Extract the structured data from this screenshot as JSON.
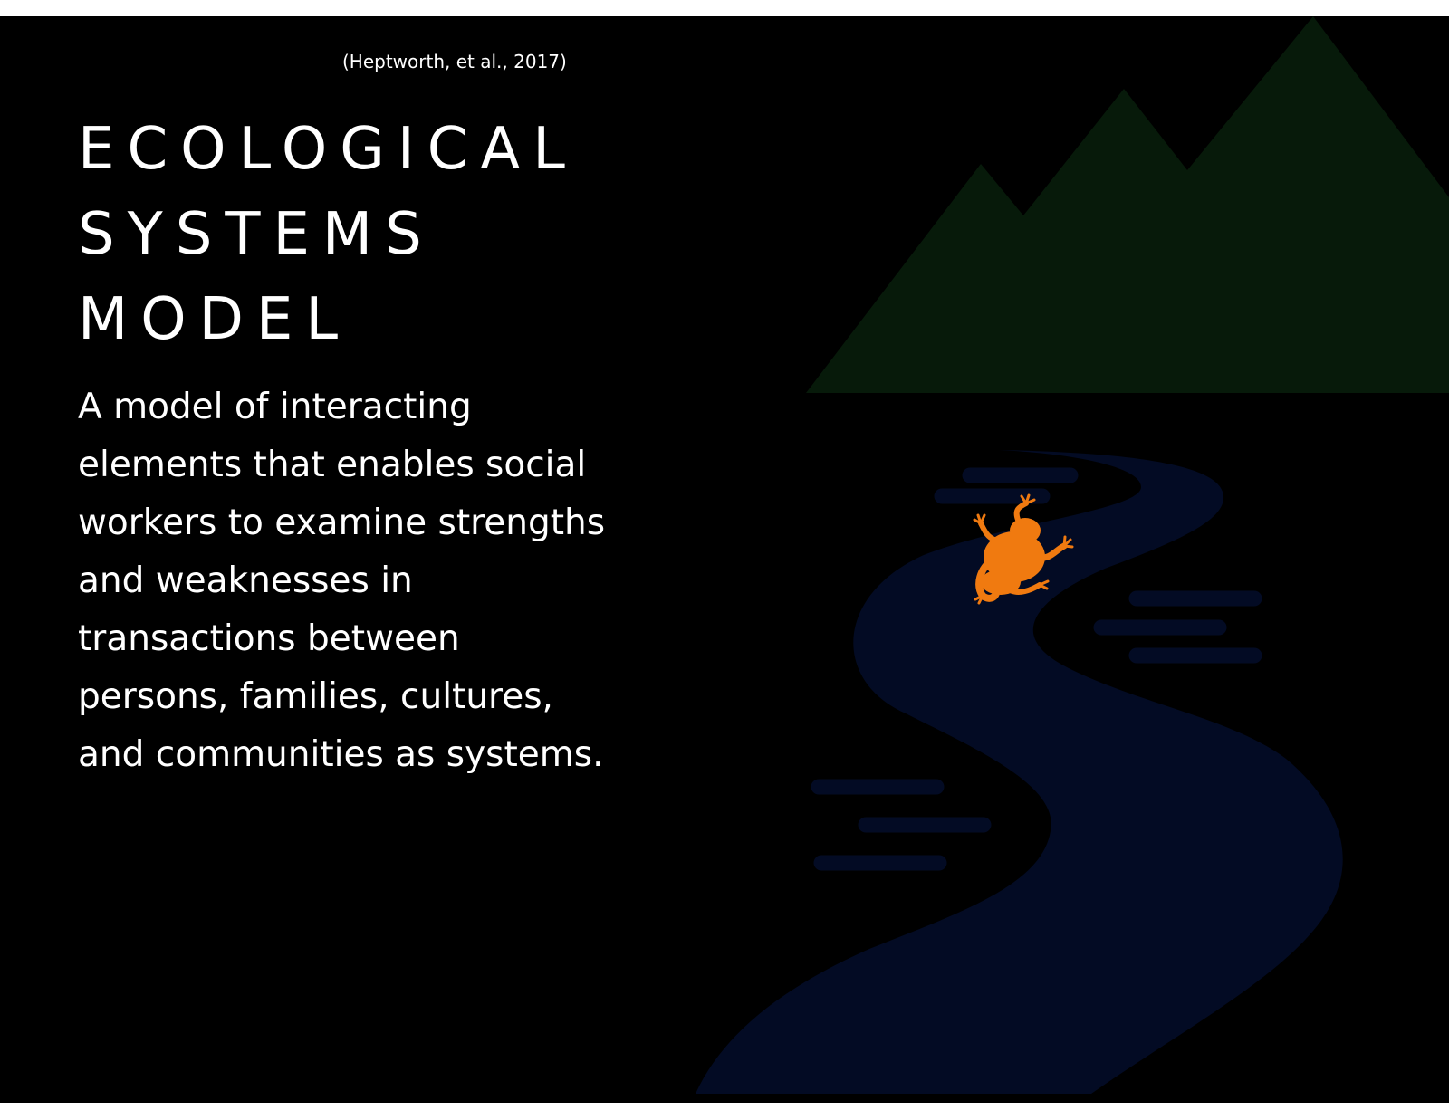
{
  "slide": {
    "citation": "(Heptworth, et al., 2017)",
    "title_lines": [
      "ECOLOGICAL",
      "SYSTEMS",
      "MODEL"
    ],
    "body": "A model of interacting elements that enables social workers to examine strengths and weaknesses in transactions between persons, families, cultures, and communities as systems."
  },
  "colors": {
    "background": "#000000",
    "text": "#ffffff",
    "mountains": "#071a0a",
    "river": "#030b24",
    "frog": "#f07a10"
  },
  "icons": [
    "mountains-illustration",
    "river-illustration",
    "frog-icon"
  ]
}
